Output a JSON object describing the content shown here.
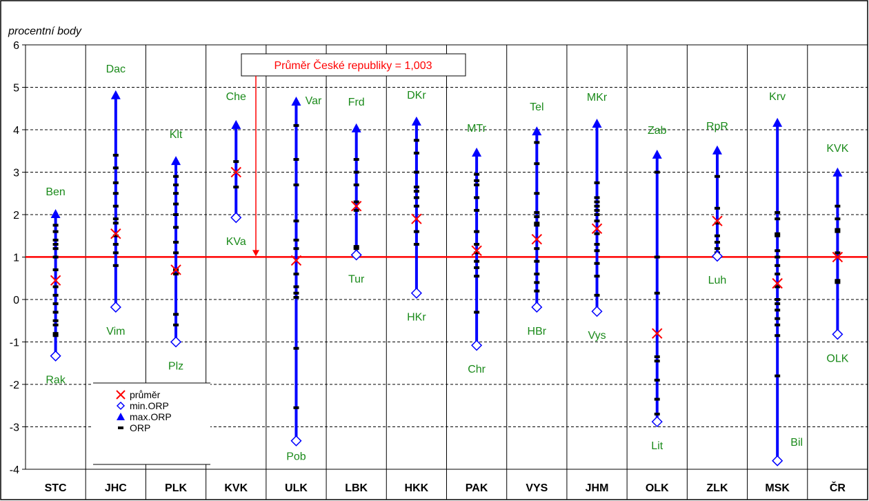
{
  "chart_data": {
    "type": "scatter",
    "ylabel": "procentní body",
    "ylim": [
      -4,
      6
    ],
    "yticks": [
      6,
      5,
      4,
      3,
      2,
      1,
      0,
      -1,
      -2,
      -3,
      -4
    ],
    "grid": "horizontal dashed, vertical solid",
    "categories": [
      "STC",
      "JHC",
      "PLK",
      "KVK",
      "ULK",
      "LBK",
      "HKK",
      "PAK",
      "VYS",
      "JHM",
      "OLK",
      "ZLK",
      "MSK",
      "ČR"
    ],
    "reference_line": {
      "value": 1.003,
      "label": "Průměr České republiky = 1,003",
      "color": "#ff0000"
    },
    "series": [
      {
        "name": "průměr",
        "color": "#ff0000",
        "values": [
          0.45,
          1.55,
          0.7,
          3.0,
          0.92,
          2.2,
          1.9,
          1.15,
          1.42,
          1.67,
          -0.8,
          1.85,
          0.38,
          1.0
        ]
      },
      {
        "name": "min.ORP",
        "color": "#0000ff",
        "values": [
          -1.33,
          -0.18,
          -1.0,
          1.93,
          -3.33,
          1.05,
          0.15,
          -1.08,
          -0.18,
          -0.28,
          -2.88,
          1.02,
          -3.8,
          -0.82
        ],
        "labels": [
          "Rak",
          "Vim",
          "Plz",
          "KVa",
          "Pob",
          "Tur",
          "HKr",
          "Chr",
          "HBr",
          "Vys",
          "Lit",
          "Luh",
          "Bil",
          "OLK"
        ]
      },
      {
        "name": "max.ORP",
        "color": "#0000ff",
        "values": [
          2.0,
          4.8,
          3.25,
          4.1,
          4.65,
          4.02,
          4.18,
          3.45,
          3.95,
          4.13,
          3.4,
          3.5,
          4.15,
          2.98
        ],
        "labels": [
          "Ben",
          "Dac",
          "Klt",
          "Che",
          "Var",
          "Frd",
          "DKr",
          "MTr",
          "Tel",
          "MKr",
          "Zab",
          "RpR",
          "Krv",
          "KVK"
        ]
      },
      {
        "name": "ORP",
        "color": "#000000",
        "values": [
          [
            1.75,
            1.6,
            1.4,
            1.3,
            1.2,
            1.0,
            0.7,
            0.3,
            0.1,
            -0.1,
            -0.3,
            -0.5,
            -0.6,
            -0.8,
            -0.85
          ],
          [
            3.4,
            3.1,
            2.75,
            2.5,
            2.2,
            1.9,
            1.8,
            1.5,
            1.3,
            1.1,
            0.8
          ],
          [
            2.9,
            2.7,
            2.5,
            2.25,
            2.0,
            1.7,
            1.35,
            1.1,
            0.7,
            0.6,
            -0.35,
            -0.6
          ],
          [
            3.25,
            2.65
          ],
          [
            4.1,
            3.3,
            2.7,
            1.85,
            1.4,
            1.2,
            0.6,
            0.3,
            0.15,
            0.05,
            -1.15,
            -2.55
          ],
          [
            3.3,
            3.0,
            2.7,
            2.3,
            2.1,
            1.25,
            1.2
          ],
          [
            3.75,
            3.45,
            3.0,
            2.65,
            2.55,
            2.4,
            2.2,
            1.6,
            1.3
          ],
          [
            2.95,
            2.8,
            2.7,
            2.4,
            2.1,
            1.6,
            1.3,
            1.1,
            0.9,
            0.75,
            0.55,
            -0.3
          ],
          [
            3.7,
            3.2,
            2.5,
            2.05,
            1.95,
            1.8,
            1.75,
            1.2,
            0.9,
            0.6,
            0.4,
            0.2
          ],
          [
            2.75,
            2.4,
            2.3,
            2.2,
            2.1,
            2.0,
            1.85,
            1.55,
            1.3,
            1.15,
            0.85,
            0.55,
            0.1
          ],
          [
            3.0,
            1.0,
            0.15,
            -1.35,
            -1.45,
            -1.9,
            -2.35,
            -2.7
          ],
          [
            2.9,
            2.15,
            1.8,
            1.5,
            1.35,
            1.2,
            1.1
          ],
          [
            2.05,
            1.9,
            1.55,
            1.5,
            1.15,
            1.0,
            0.8,
            0.6,
            0.3,
            0.0,
            -0.1,
            -0.25,
            -0.45,
            -0.6,
            -0.85,
            -1.8
          ],
          [
            2.2,
            1.9,
            1.65,
            1.6,
            1.1,
            0.45,
            0.4
          ]
        ]
      }
    ]
  },
  "legend": [
    {
      "label": "průměr",
      "marker": "x",
      "color": "#ff0000"
    },
    {
      "label": "min.ORP",
      "marker": "diamond",
      "color": "#0000ff"
    },
    {
      "label": "max.ORP",
      "marker": "triangle",
      "color": "#0000ff"
    },
    {
      "label": "ORP",
      "marker": "dash",
      "color": "#000000"
    }
  ]
}
